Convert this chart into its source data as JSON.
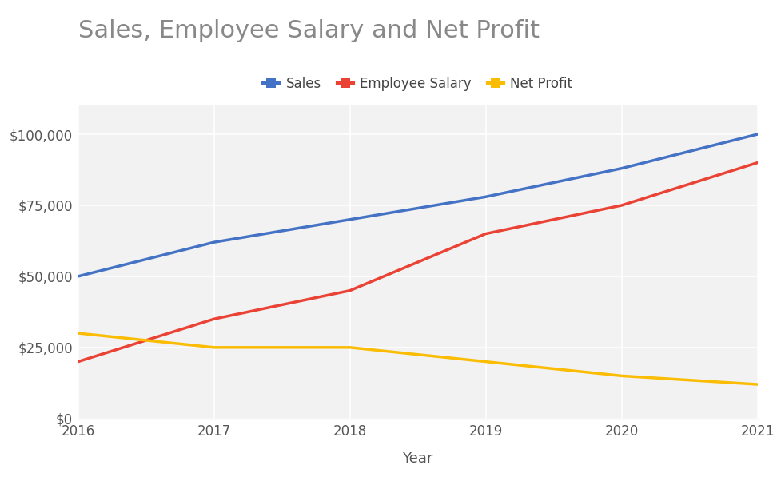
{
  "title": "Sales, Employee Salary and Net Profit",
  "xlabel": "Year",
  "years": [
    2016,
    2017,
    2018,
    2019,
    2020,
    2021
  ],
  "sales": [
    50000,
    62000,
    70000,
    78000,
    88000,
    100000
  ],
  "salary": [
    20000,
    35000,
    45000,
    65000,
    75000,
    90000
  ],
  "net_profit": [
    30000,
    25000,
    25000,
    20000,
    15000,
    12000
  ],
  "sales_color": "#4472C4",
  "salary_color": "#EA4335",
  "profit_color": "#FBBC04",
  "title_color": "#888888",
  "background_color": "#ffffff",
  "plot_bg_color": "#f2f2f2",
  "grid_color": "#ffffff",
  "ylim": [
    0,
    110000
  ],
  "yticks": [
    0,
    25000,
    50000,
    75000,
    100000
  ],
  "line_width": 2.5,
  "title_fontsize": 22,
  "legend_fontsize": 12,
  "tick_fontsize": 12,
  "xlabel_fontsize": 13
}
